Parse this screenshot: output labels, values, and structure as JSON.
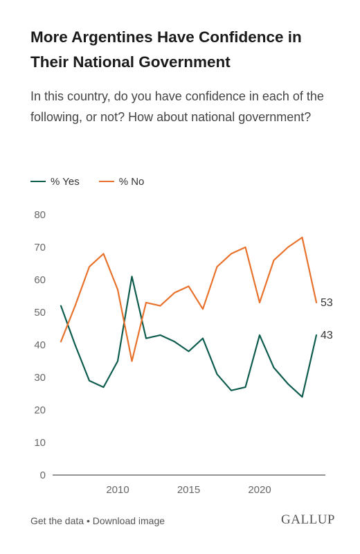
{
  "header": {
    "title": "More Argentines Have Confidence in Their National Government",
    "subtitle": "In this country, do you have confidence in each of the following, or not? How about national government?"
  },
  "footer": {
    "get_data": "Get the data",
    "separator": "•",
    "download": "Download image",
    "brand": "GALLUP"
  },
  "chart_data": {
    "type": "line",
    "xlabel": "",
    "ylabel": "",
    "xlim": [
      2006,
      2024
    ],
    "ylim": [
      0,
      80
    ],
    "x_ticks": [
      2010,
      2015,
      2020
    ],
    "y_ticks": [
      0,
      10,
      20,
      30,
      40,
      50,
      60,
      70,
      80
    ],
    "grid": false,
    "legend": "top-left",
    "x": [
      2006,
      2007,
      2008,
      2009,
      2010,
      2011,
      2012,
      2013,
      2014,
      2015,
      2016,
      2017,
      2018,
      2019,
      2020,
      2021,
      2022,
      2023,
      2024
    ],
    "series": [
      {
        "name": "% Yes",
        "color": "#0e5c4d",
        "values": [
          52,
          40,
          29,
          27,
          35,
          61,
          42,
          43,
          41,
          38,
          42,
          31,
          26,
          27,
          43,
          33,
          28,
          24,
          43
        ],
        "end_label": "43"
      },
      {
        "name": "% No",
        "color": "#e8722c",
        "values": [
          41,
          52,
          64,
          68,
          57,
          35,
          53,
          52,
          56,
          58,
          51,
          64,
          68,
          70,
          53,
          66,
          70,
          73,
          53
        ],
        "end_label": "53"
      }
    ]
  }
}
